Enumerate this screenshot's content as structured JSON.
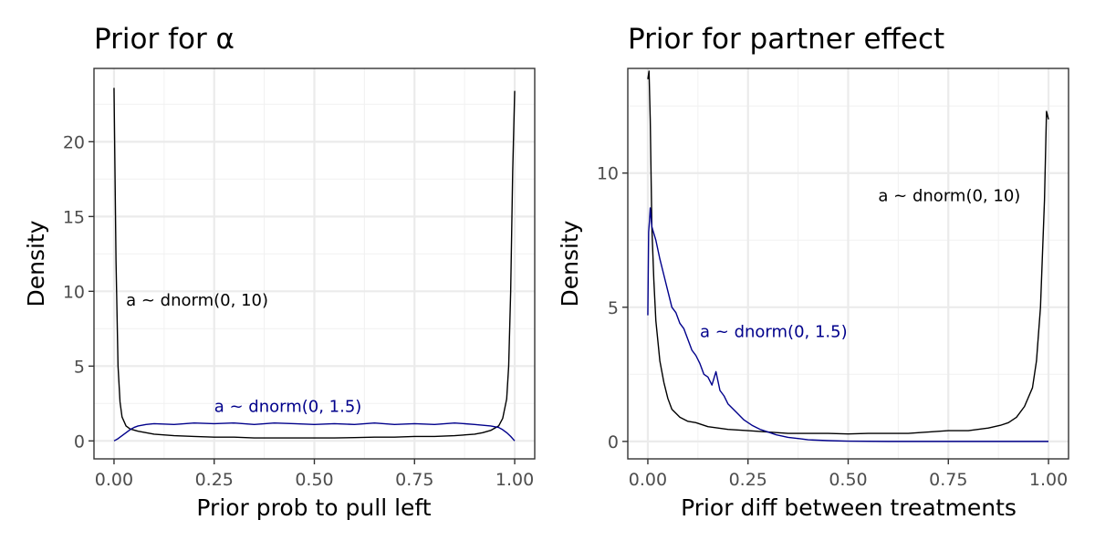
{
  "chart_data": [
    {
      "type": "line",
      "title": "Prior for α",
      "xlabel": "Prior prob to pull left",
      "ylabel": "Density",
      "xlim": [
        -0.05,
        1.05
      ],
      "ylim": [
        -1.2,
        24.9
      ],
      "x_ticks": [
        0,
        0.25,
        0.5,
        0.75,
        1
      ],
      "x_tick_labels": [
        "0.00",
        "0.25",
        "0.50",
        "0.75",
        "1.00"
      ],
      "y_ticks": [
        0,
        5,
        10,
        15,
        20
      ],
      "y_tick_labels": [
        "0",
        "5",
        "10",
        "15",
        "20"
      ],
      "grid": true,
      "theme": "bw",
      "series": [
        {
          "color": "#000000",
          "x": [
            0.0,
            0.005,
            0.01,
            0.015,
            0.02,
            0.03,
            0.04,
            0.06,
            0.08,
            0.1,
            0.15,
            0.2,
            0.25,
            0.3,
            0.35,
            0.4,
            0.45,
            0.5,
            0.55,
            0.6,
            0.65,
            0.7,
            0.75,
            0.8,
            0.85,
            0.9,
            0.92,
            0.94,
            0.96,
            0.97,
            0.98,
            0.985,
            0.99,
            0.995,
            1.0
          ],
          "y": [
            23.6,
            12.0,
            5.0,
            2.6,
            1.6,
            1.0,
            0.8,
            0.65,
            0.55,
            0.45,
            0.35,
            0.3,
            0.25,
            0.25,
            0.2,
            0.2,
            0.2,
            0.2,
            0.2,
            0.22,
            0.25,
            0.25,
            0.3,
            0.3,
            0.35,
            0.45,
            0.55,
            0.7,
            1.0,
            1.5,
            2.8,
            5.0,
            10.0,
            18.0,
            23.4
          ]
        },
        {
          "color": "#00008b",
          "x": [
            0.0,
            0.01,
            0.02,
            0.03,
            0.04,
            0.05,
            0.06,
            0.08,
            0.1,
            0.15,
            0.2,
            0.25,
            0.3,
            0.35,
            0.4,
            0.45,
            0.5,
            0.55,
            0.6,
            0.65,
            0.7,
            0.75,
            0.8,
            0.85,
            0.9,
            0.94,
            0.96,
            0.97,
            0.98,
            0.99,
            1.0
          ],
          "y": [
            0.0,
            0.15,
            0.35,
            0.55,
            0.75,
            0.9,
            1.0,
            1.1,
            1.15,
            1.1,
            1.2,
            1.15,
            1.2,
            1.1,
            1.2,
            1.15,
            1.1,
            1.15,
            1.1,
            1.2,
            1.1,
            1.15,
            1.1,
            1.2,
            1.1,
            1.0,
            0.9,
            0.75,
            0.55,
            0.3,
            0.0
          ]
        }
      ],
      "annotations": [
        {
          "text": "a ~ dnorm(0, 10)",
          "x": 0.03,
          "y": 9.4,
          "color": "#000000"
        },
        {
          "text": "a ~ dnorm(0, 1.5)",
          "x": 0.25,
          "y": 2.3,
          "color": "#00008b"
        }
      ]
    },
    {
      "type": "line",
      "title": "Prior for partner effect",
      "xlabel": "Prior diff between treatments",
      "ylabel": "Density",
      "xlim": [
        -0.05,
        1.05
      ],
      "ylim": [
        -0.65,
        13.9
      ],
      "x_ticks": [
        0,
        0.25,
        0.5,
        0.75,
        1
      ],
      "x_tick_labels": [
        "0.00",
        "0.25",
        "0.50",
        "0.75",
        "1.00"
      ],
      "y_ticks": [
        0,
        5,
        10
      ],
      "y_tick_labels": [
        "0",
        "5",
        "10"
      ],
      "grid": true,
      "theme": "bw",
      "series": [
        {
          "color": "#000000",
          "x": [
            0.0,
            0.003,
            0.006,
            0.01,
            0.015,
            0.02,
            0.03,
            0.04,
            0.05,
            0.06,
            0.08,
            0.1,
            0.12,
            0.15,
            0.2,
            0.25,
            0.3,
            0.35,
            0.4,
            0.45,
            0.5,
            0.55,
            0.6,
            0.65,
            0.7,
            0.75,
            0.8,
            0.85,
            0.88,
            0.9,
            0.92,
            0.94,
            0.96,
            0.97,
            0.98,
            0.99,
            0.995,
            1.0
          ],
          "y": [
            13.5,
            13.8,
            12.0,
            8.0,
            6.0,
            4.5,
            3.0,
            2.2,
            1.6,
            1.2,
            0.9,
            0.75,
            0.7,
            0.55,
            0.45,
            0.4,
            0.35,
            0.3,
            0.3,
            0.3,
            0.28,
            0.3,
            0.3,
            0.3,
            0.35,
            0.4,
            0.4,
            0.5,
            0.6,
            0.7,
            0.9,
            1.3,
            2.0,
            3.0,
            5.0,
            9.0,
            12.3,
            12.0
          ]
        },
        {
          "color": "#00008b",
          "x": [
            0.0,
            0.002,
            0.004,
            0.006,
            0.01,
            0.02,
            0.03,
            0.04,
            0.05,
            0.06,
            0.07,
            0.08,
            0.09,
            0.1,
            0.11,
            0.12,
            0.13,
            0.14,
            0.15,
            0.16,
            0.17,
            0.18,
            0.19,
            0.2,
            0.22,
            0.24,
            0.26,
            0.28,
            0.3,
            0.32,
            0.35,
            0.38,
            0.4,
            0.45,
            0.5,
            0.6,
            0.7,
            0.8,
            0.9,
            1.0
          ],
          "y": [
            4.7,
            7.8,
            8.2,
            8.7,
            8.0,
            7.5,
            6.8,
            6.2,
            5.6,
            5.0,
            4.8,
            4.4,
            4.2,
            3.8,
            3.4,
            3.2,
            2.9,
            2.5,
            2.4,
            2.1,
            2.6,
            1.9,
            1.7,
            1.4,
            1.1,
            0.8,
            0.6,
            0.45,
            0.35,
            0.25,
            0.15,
            0.1,
            0.06,
            0.03,
            0.01,
            0.0,
            0.0,
            0.0,
            0.0,
            0.0
          ]
        }
      ],
      "annotations": [
        {
          "text": "a ~ dnorm(0, 10)",
          "x": 0.575,
          "y": 9.15,
          "color": "#000000"
        },
        {
          "text": "a ~ dnorm(0, 1.5)",
          "x": 0.13,
          "y": 4.1,
          "color": "#00008b"
        }
      ]
    }
  ]
}
